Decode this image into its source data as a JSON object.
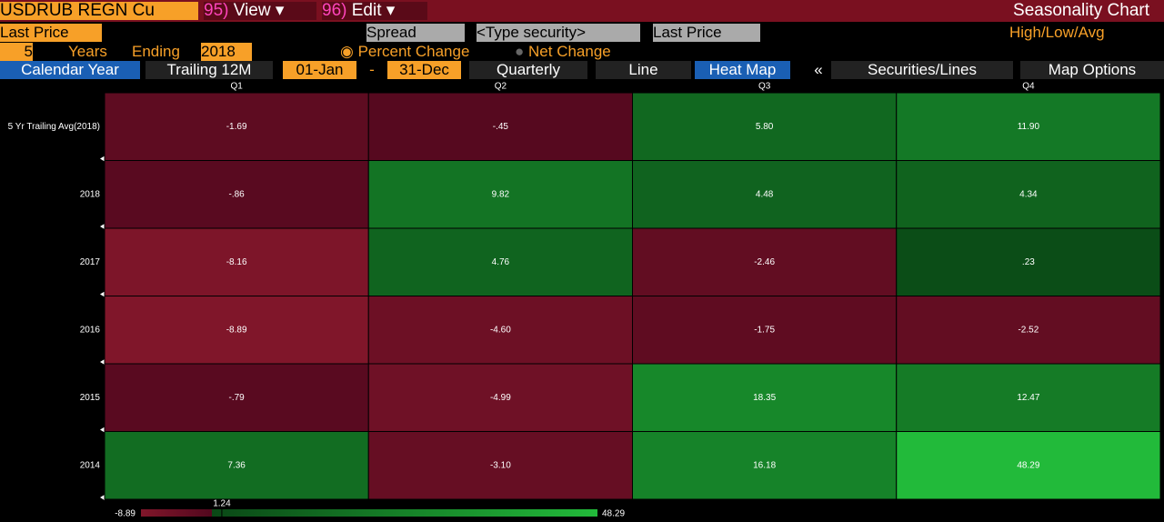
{
  "toolbar": {
    "ticker": "USDRUB REGN Cu",
    "menus": [
      {
        "num": "95)",
        "label": "View"
      },
      {
        "num": "96)",
        "label": "Edit"
      }
    ],
    "title": "Seasonality Chart",
    "row2": [
      "Last Price",
      "Spread",
      "<Type security>",
      "Last Price",
      "High/Low/Avg"
    ],
    "row3": {
      "years": "5",
      "years_label": "Years",
      "ending_label": "Ending",
      "ending": "2018",
      "percent": "Percent Change",
      "net": "Net Change"
    },
    "tabs": [
      "Calendar Year",
      "Trailing 12M",
      "01-Jan",
      "-",
      "31-Dec",
      "Quarterly",
      "Line",
      "Heat Map",
      "«",
      "Securities/Lines",
      "Map Options"
    ]
  },
  "heatmap": {
    "columns": [
      "Q1",
      "Q2",
      "Q3",
      "Q4"
    ],
    "rows": [
      {
        "label": "5 Yr Trailing Avg(2018)",
        "cells": [
          "-1.69",
          "-.45",
          "5.80",
          "11.90"
        ]
      },
      {
        "label": "2018",
        "cells": [
          "-.86",
          "9.82",
          "4.48",
          "4.34"
        ]
      },
      {
        "label": "2017",
        "cells": [
          "-8.16",
          "4.76",
          "-2.46",
          ".23"
        ]
      },
      {
        "label": "2016",
        "cells": [
          "-8.89",
          "-4.60",
          "-1.75",
          "-2.52"
        ]
      },
      {
        "label": "2015",
        "cells": [
          "-.79",
          "-4.99",
          "18.35",
          "12.47"
        ]
      },
      {
        "label": "2014",
        "cells": [
          "7.36",
          "-3.10",
          "16.18",
          "48.29"
        ]
      }
    ],
    "legend": {
      "min": "-8.89",
      "mid": "1.24",
      "max": "48.29"
    }
  }
}
